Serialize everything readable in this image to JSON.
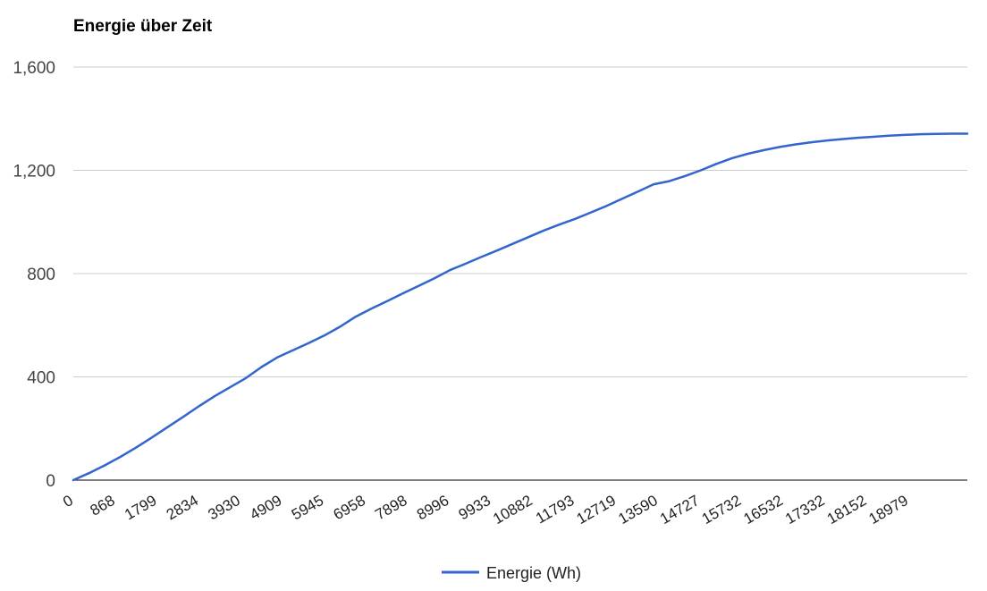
{
  "chart_data": {
    "type": "line",
    "title": "Energie über Zeit",
    "xlabel": "",
    "ylabel": "",
    "ylim": [
      0,
      1600
    ],
    "y_ticks": [
      0,
      400,
      800,
      1200,
      1600
    ],
    "y_tick_labels": [
      "0",
      "400",
      "800",
      "1,200",
      "1,600"
    ],
    "x_tick_labels": [
      "0",
      "868",
      "1799",
      "2834",
      "3930",
      "4909",
      "5945",
      "6958",
      "7898",
      "8996",
      "9933",
      "10882",
      "11793",
      "12719",
      "13590",
      "14727",
      "15732",
      "16532",
      "17332",
      "18152",
      "18979"
    ],
    "grid": true,
    "legend": "bottom",
    "series": [
      {
        "name": "Energie (Wh)",
        "color": "#3366cc",
        "values": [
          0,
          27,
          57,
          90,
          126,
          165,
          205,
          245,
          286,
          325,
          360,
          395,
          438,
          475,
          503,
          531,
          560,
          594,
          633,
          664,
          693,
          723,
          752,
          781,
          813,
          838,
          864,
          889,
          915,
          941,
          967,
          990,
          1012,
          1037,
          1062,
          1090,
          1118,
          1146,
          1158,
          1178,
          1200,
          1225,
          1247,
          1264,
          1278,
          1290,
          1300,
          1308,
          1315,
          1321,
          1326,
          1330,
          1334,
          1337,
          1340,
          1341,
          1342,
          1342
        ]
      }
    ]
  }
}
